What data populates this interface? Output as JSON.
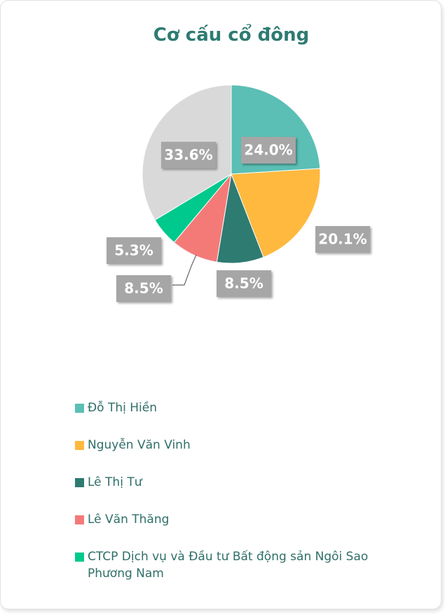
{
  "chart_data": {
    "type": "pie",
    "title": "Cơ cấu cổ đông",
    "categories": [
      "Đỗ Thị Hiền",
      "Nguyễn Văn Vinh",
      "Lê Thị Tư",
      "Lê Văn Thăng",
      "CTCP Dịch vụ và Đầu tư Bất động sản Ngôi Sao Phương Nam",
      null
    ],
    "values": [
      24.0,
      20.1,
      8.5,
      8.5,
      5.3,
      33.6
    ],
    "value_labels": [
      "24.0%",
      "20.1%",
      "8.5%",
      "8.5%",
      "5.3%",
      "33.6%"
    ],
    "colors": [
      "#5bbfb5",
      "#ffb93f",
      "#2e7b72",
      "#f47a78",
      "#00c98d",
      "#d9d9d9"
    ],
    "legend": "bottom"
  }
}
